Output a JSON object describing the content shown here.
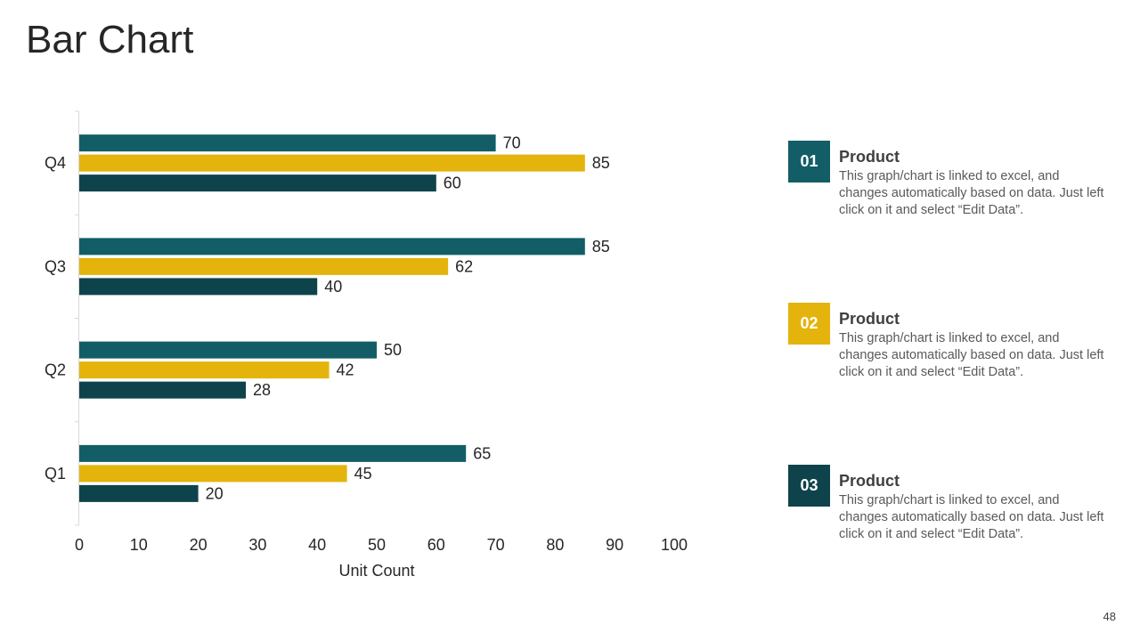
{
  "page": {
    "title": "Bar Chart",
    "page_number": "48"
  },
  "colors": {
    "series1": "#135e66",
    "series2": "#e4b40c",
    "series3": "#0f434b",
    "text": "#262626",
    "axis": "#d9d9d9"
  },
  "legend": {
    "items": [
      {
        "number": "01",
        "title": "Product",
        "desc": "This graph/chart is linked to excel, and changes automatically based on data. Just left click on it and select “Edit Data”.",
        "color": "#135e66"
      },
      {
        "number": "02",
        "title": "Product",
        "desc": "This graph/chart is linked to excel, and changes automatically based on data. Just left click on it and select “Edit Data”.",
        "color": "#e4b40c"
      },
      {
        "number": "03",
        "title": "Product",
        "desc": "This graph/chart is linked to excel, and changes automatically based on data. Just left click on it and select “Edit Data”.",
        "color": "#0f434b"
      }
    ]
  },
  "chart_data": {
    "type": "bar",
    "orientation": "horizontal",
    "title": "",
    "xlabel": "Unit Count",
    "ylabel": "",
    "xlim": [
      0,
      100
    ],
    "xticks": [
      0,
      10,
      20,
      30,
      40,
      50,
      60,
      70,
      80,
      90,
      100
    ],
    "grid": false,
    "categories": [
      "Q1",
      "Q2",
      "Q3",
      "Q4"
    ],
    "series": [
      {
        "name": "Product 01",
        "values": [
          65,
          50,
          85,
          70
        ]
      },
      {
        "name": "Product 02",
        "values": [
          45,
          42,
          62,
          85
        ]
      },
      {
        "name": "Product 03",
        "values": [
          20,
          28,
          40,
          60
        ]
      }
    ]
  }
}
